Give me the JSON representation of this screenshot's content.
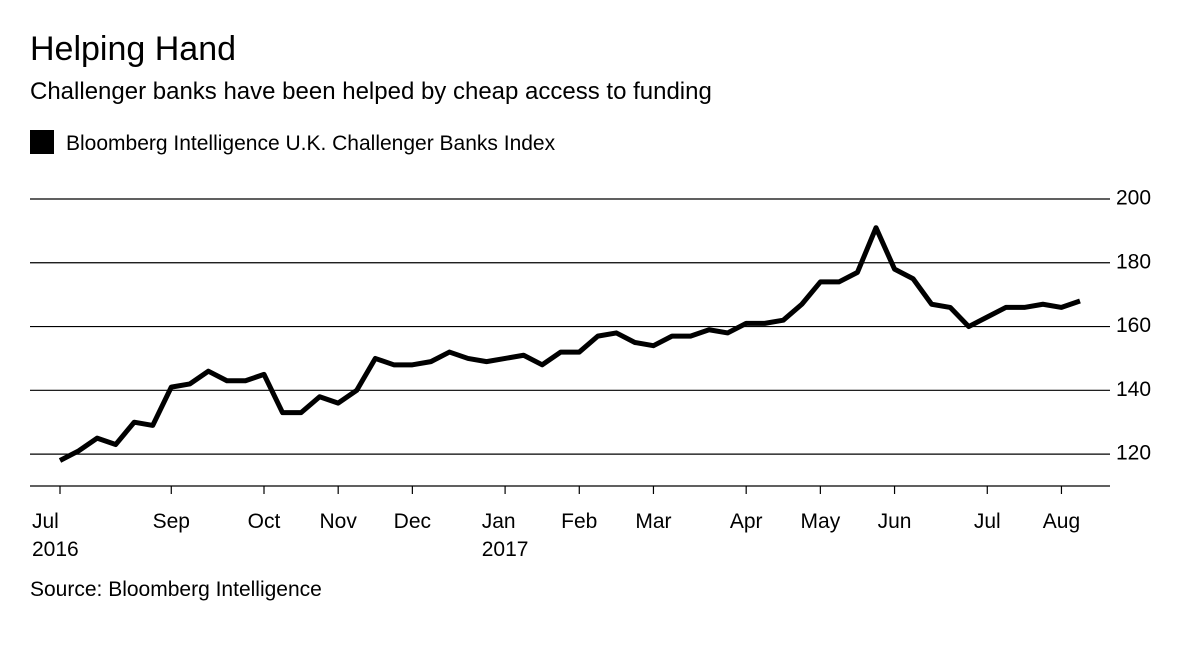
{
  "chart_data": {
    "type": "line",
    "title": "Helping Hand",
    "subtitle": "Challenger banks have been helped by cheap access to funding",
    "source": "Source: Bloomberg Intelligence",
    "categories": [
      "Jul\n2016",
      null,
      null,
      null,
      null,
      null,
      "Sep",
      null,
      null,
      null,
      null,
      "Oct",
      null,
      null,
      null,
      "Nov",
      null,
      null,
      null,
      "Dec",
      null,
      null,
      null,
      null,
      "Jan\n2017",
      null,
      null,
      null,
      "Feb",
      null,
      null,
      null,
      "Mar",
      null,
      null,
      null,
      null,
      "Apr",
      null,
      null,
      null,
      "May",
      null,
      null,
      null,
      "Jun",
      null,
      null,
      null,
      null,
      "Jul",
      null,
      null,
      null,
      "Aug",
      null
    ],
    "series": [
      {
        "name": "Bloomberg Intelligence U.K. Challenger Banks Index",
        "color": "#000000",
        "values": [
          118,
          121,
          125,
          123,
          130,
          129,
          141,
          142,
          146,
          143,
          143,
          145,
          133,
          133,
          138,
          136,
          140,
          150,
          148,
          148,
          149,
          152,
          150,
          149,
          150,
          151,
          148,
          152,
          152,
          157,
          158,
          155,
          154,
          157,
          157,
          159,
          158,
          161,
          161,
          162,
          167,
          174,
          174,
          177,
          191,
          178,
          175,
          167,
          166,
          160,
          163,
          166,
          166,
          167,
          166,
          168
        ]
      }
    ],
    "ylim": [
      110,
      200
    ],
    "yticks": [
      120,
      140,
      160,
      180,
      200
    ],
    "grid": true,
    "legend": "top-left"
  }
}
